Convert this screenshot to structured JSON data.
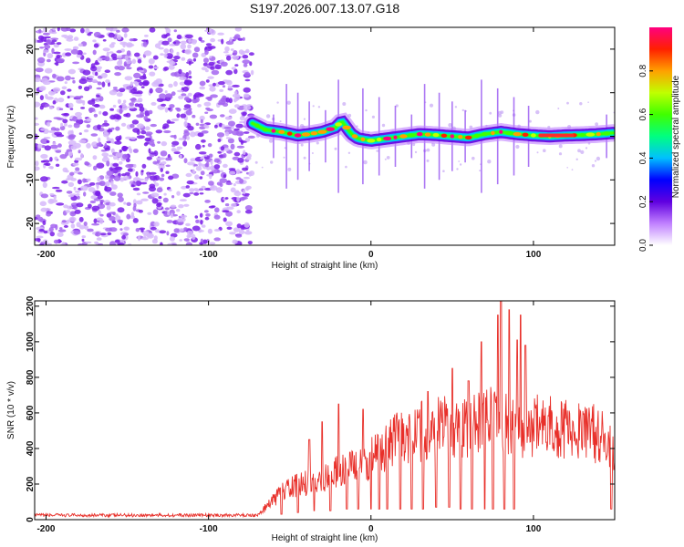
{
  "title": "S197.2026.007.13.07.G18",
  "chart_data": [
    {
      "type": "heatmap",
      "name": "spectrogram",
      "xlabel": "Height of straight line (km)",
      "ylabel": "Frequency (Hz)",
      "xlim": [
        -207,
        150
      ],
      "ylim": [
        -25,
        25
      ],
      "xticks": [
        -200,
        -100,
        0,
        100
      ],
      "xtick_labels": [
        "-200",
        "-100",
        "0",
        "100"
      ],
      "yticks": [
        -20,
        -10,
        0,
        10,
        20
      ],
      "ytick_labels": [
        "-20",
        "-10",
        "0",
        "10",
        "20"
      ],
      "noise_region_x": [
        -207,
        -73
      ],
      "signal_trace": {
        "x": [
          -73,
          -65,
          -55,
          -45,
          -38,
          -30,
          -22,
          -18,
          -12,
          -8,
          0,
          10,
          20,
          30,
          40,
          50,
          60,
          70,
          80,
          90,
          100,
          110,
          120,
          130,
          140,
          150
        ],
        "freq": [
          3,
          1.5,
          1,
          0.2,
          0.5,
          1,
          2,
          3.5,
          0.5,
          -0.5,
          -1,
          -0.5,
          0,
          0.5,
          0.3,
          0,
          -0.3,
          0.5,
          1,
          0.5,
          0.2,
          0,
          0.2,
          0.3,
          0.5,
          0.8
        ]
      },
      "colorbar": {
        "label": "Normalized spectral amplitude",
        "range": [
          0,
          1
        ],
        "ticks": [
          0,
          0.2,
          0.4,
          0.6,
          0.8
        ],
        "tick_labels": [
          "0.0",
          "0.2",
          "0.4",
          "0.6",
          "0.8"
        ],
        "colors": [
          "#ffffff",
          "#c080ff",
          "#6000e0",
          "#0000ff",
          "#00c0ff",
          "#00ff80",
          "#40ff00",
          "#c0ff00",
          "#ffa000",
          "#ff2000",
          "#ff0080"
        ]
      }
    },
    {
      "type": "line",
      "name": "snr",
      "xlabel": "Height of straight line (km)",
      "ylabel": "SNR (10 * v/v)",
      "xlim": [
        -207,
        150
      ],
      "ylim": [
        0,
        1230
      ],
      "xticks": [
        -200,
        -100,
        0,
        100
      ],
      "xtick_labels": [
        "-200",
        "-100",
        "0",
        "100"
      ],
      "yticks": [
        0,
        200,
        400,
        600,
        800,
        1000,
        1200
      ],
      "ytick_labels": [
        "0",
        "200",
        "400",
        "600",
        "800",
        "1000",
        "1200"
      ],
      "line_color": "#e8302a",
      "envelope": {
        "x": [
          -207,
          -70,
          -63,
          -55,
          -45,
          -35,
          -25,
          -15,
          -5,
          5,
          15,
          25,
          35,
          45,
          55,
          65,
          75,
          80,
          90,
          100,
          110,
          120,
          130,
          140,
          145,
          150
        ],
        "snr": [
          25,
          25,
          100,
          180,
          230,
          250,
          300,
          330,
          360,
          450,
          520,
          560,
          600,
          620,
          600,
          640,
          650,
          640,
          620,
          620,
          620,
          600,
          590,
          560,
          500,
          420
        ],
        "peak_x": [
          -55,
          -45,
          -38,
          -30,
          -25,
          -20,
          -5,
          10,
          25,
          35,
          40,
          50,
          55,
          60,
          68,
          75,
          78,
          80,
          85,
          90,
          92,
          95
        ],
        "peak_snr": [
          330,
          380,
          450,
          550,
          600,
          650,
          620,
          700,
          760,
          720,
          830,
          850,
          900,
          780,
          1000,
          1050,
          1150,
          1230,
          1180,
          1010,
          1150,
          980
        ],
        "dip_x": [
          -55,
          -45,
          -35,
          -25,
          -15,
          -8,
          0,
          5,
          10,
          18,
          25,
          32,
          40,
          48,
          55,
          62,
          70,
          75,
          82,
          88,
          148
        ],
        "dip_snr": [
          30,
          40,
          50,
          50,
          60,
          60,
          60,
          60,
          60,
          60,
          60,
          60,
          70,
          70,
          60,
          60,
          60,
          60,
          60,
          60,
          60
        ]
      }
    }
  ]
}
